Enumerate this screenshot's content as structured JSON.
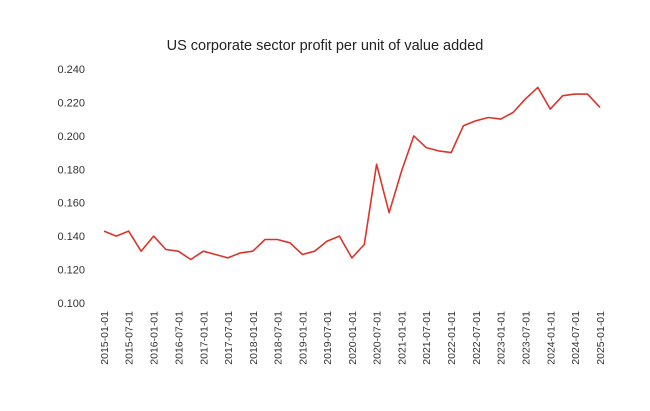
{
  "chart_data": {
    "type": "line",
    "title": "US corporate sector profit per unit of value added",
    "xlabel": "",
    "ylabel": "",
    "ylim": [
      0.1,
      0.24
    ],
    "yticks": [
      "0.100",
      "0.120",
      "0.140",
      "0.160",
      "0.180",
      "0.200",
      "0.220",
      "0.240"
    ],
    "grid": false,
    "legend": "none",
    "colors": {
      "line": "#d9352b",
      "text": "#333333"
    },
    "x_tick_labels": [
      "2015-01-01",
      "2015-07-01",
      "2016-01-01",
      "2016-07-01",
      "2017-01-01",
      "2017-07-01",
      "2018-01-01",
      "2018-07-01",
      "2019-01-01",
      "2019-07-01",
      "2020-01-01",
      "2020-07-01",
      "2021-01-01",
      "2021-07-01",
      "2022-01-01",
      "2022-07-01",
      "2023-01-01",
      "2023-07-01",
      "2024-01-01",
      "2024-07-01",
      "2025-01-01"
    ],
    "x": [
      "2015-01-01",
      "2015-04-01",
      "2015-07-01",
      "2015-10-01",
      "2016-01-01",
      "2016-04-01",
      "2016-07-01",
      "2016-10-01",
      "2017-01-01",
      "2017-04-01",
      "2017-07-01",
      "2017-10-01",
      "2018-01-01",
      "2018-04-01",
      "2018-07-01",
      "2018-10-01",
      "2019-01-01",
      "2019-04-01",
      "2019-07-01",
      "2019-10-01",
      "2020-01-01",
      "2020-04-01",
      "2020-07-01",
      "2020-10-01",
      "2021-01-01",
      "2021-04-01",
      "2021-07-01",
      "2021-10-01",
      "2022-01-01",
      "2022-04-01",
      "2022-07-01",
      "2022-10-01",
      "2023-01-01",
      "2023-04-01",
      "2023-07-01",
      "2023-10-01",
      "2024-01-01",
      "2024-04-01",
      "2024-07-01",
      "2024-10-01",
      "2025-01-01"
    ],
    "series": [
      {
        "values": [
          0.143,
          0.14,
          0.143,
          0.131,
          0.14,
          0.132,
          0.131,
          0.126,
          0.131,
          0.129,
          0.127,
          0.13,
          0.131,
          0.138,
          0.138,
          0.136,
          0.129,
          0.131,
          0.137,
          0.14,
          0.127,
          0.135,
          0.183,
          0.154,
          0.179,
          0.2,
          0.193,
          0.191,
          0.19,
          0.206,
          0.209,
          0.211,
          0.21,
          0.214,
          0.222,
          0.229,
          0.216,
          0.224,
          0.225,
          0.225,
          0.217
        ]
      }
    ]
  }
}
